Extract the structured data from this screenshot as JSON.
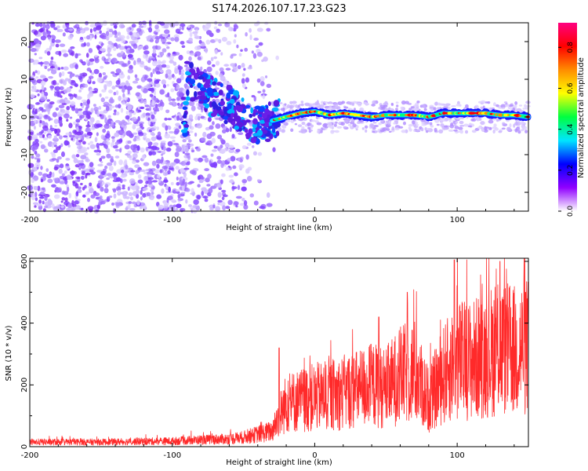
{
  "title": "S174.2026.107.17.23.G23",
  "chart_data": [
    {
      "type": "heatmap",
      "xlabel": "Height of straight line (km)",
      "ylabel": "Frequency (Hz)",
      "xlim": [
        -200,
        150
      ],
      "ylim": [
        -25,
        25
      ],
      "x_ticks": [
        -200,
        -100,
        0,
        100
      ],
      "x_tick_labels": [
        "-200",
        "-100",
        "0",
        "100"
      ],
      "y_ticks": [
        -20,
        -10,
        0,
        10,
        20
      ],
      "y_tick_labels": [
        "-20",
        "-10",
        "0",
        "10",
        "20"
      ],
      "colorbar": {
        "label": "Normalized spectral amplitude",
        "range": [
          0,
          0.92
        ],
        "ticks": [
          0.0,
          0.2,
          0.4,
          0.6,
          0.8
        ],
        "tick_labels": [
          "0.0",
          "0.2",
          "0.4",
          "0.6",
          "0.8"
        ],
        "colors": [
          "#ffffff",
          "#9000ff",
          "#0000ff",
          "#00e5ff",
          "#00ff40",
          "#ffff00",
          "#ff8c00",
          "#ff0000",
          "#ff0080"
        ]
      },
      "ridge": {
        "description_points": [
          [
            -90,
            10
          ],
          [
            -80,
            7
          ],
          [
            -70,
            5
          ],
          [
            -60,
            3
          ],
          [
            -50,
            0
          ],
          [
            -40,
            -2
          ],
          [
            -30,
            -1
          ],
          [
            -20,
            0
          ],
          [
            -10,
            1
          ],
          [
            0,
            1.5
          ],
          [
            10,
            0.5
          ],
          [
            20,
            1
          ],
          [
            30,
            0.5
          ],
          [
            40,
            0
          ],
          [
            50,
            0.5
          ],
          [
            60,
            0.5
          ],
          [
            70,
            0.5
          ],
          [
            80,
            0
          ],
          [
            90,
            1
          ],
          [
            100,
            1
          ],
          [
            110,
            1
          ],
          [
            120,
            1
          ],
          [
            130,
            0.5
          ],
          [
            140,
            0.5
          ],
          [
            150,
            0
          ]
        ]
      }
    },
    {
      "type": "line",
      "xlabel": "Height of straight line (km)",
      "ylabel": "SNR (10 * v/v)",
      "xlim": [
        -200,
        150
      ],
      "ylim": [
        0,
        610
      ],
      "x_ticks": [
        -200,
        -100,
        0,
        100
      ],
      "x_tick_labels": [
        "-200",
        "-100",
        "0",
        "100"
      ],
      "y_ticks": [
        0,
        200,
        400,
        600
      ],
      "y_tick_labels": [
        "0",
        "200",
        "400",
        "600"
      ],
      "color": "#ff2a2a",
      "trend": {
        "x": [
          -200,
          -150,
          -100,
          -80,
          -60,
          -50,
          -40,
          -30,
          -25,
          -20,
          -10,
          0,
          10,
          20,
          30,
          40,
          50,
          60,
          70,
          80,
          90,
          100,
          110,
          120,
          130,
          140,
          150
        ],
        "y": [
          15,
          15,
          18,
          22,
          25,
          30,
          40,
          50,
          100,
          140,
          150,
          160,
          165,
          175,
          185,
          200,
          190,
          230,
          245,
          150,
          230,
          280,
          280,
          300,
          320,
          310,
          330
        ]
      },
      "peaks": [
        {
          "x": -25,
          "y": 320
        },
        {
          "x": 45,
          "y": 420
        },
        {
          "x": 65,
          "y": 500
        },
        {
          "x": 98,
          "y": 605
        },
        {
          "x": 130,
          "y": 600
        },
        {
          "x": 148,
          "y": 500
        }
      ]
    }
  ]
}
